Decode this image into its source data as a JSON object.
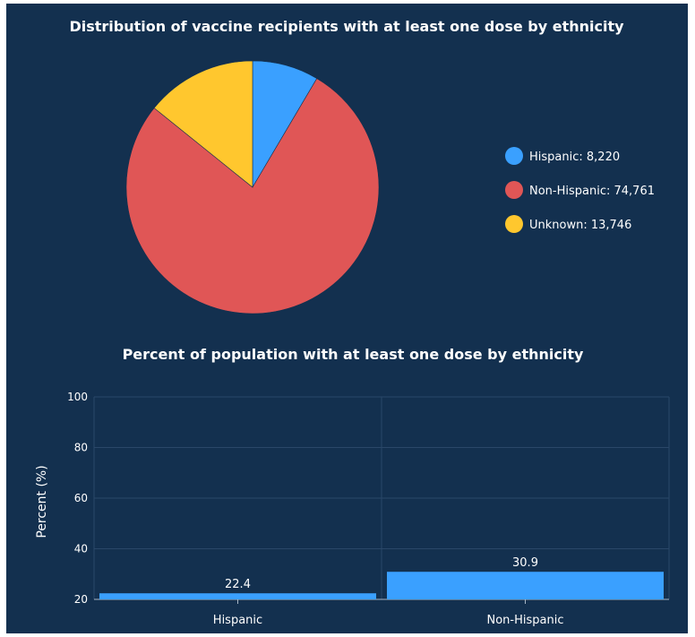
{
  "chart_data": [
    {
      "type": "pie",
      "title": "Distribution of vaccine recipients with at least one dose by ethnicity",
      "legend_position": "right",
      "slices": [
        {
          "label": "Hispanic",
          "value": 8220,
          "value_text": "8,220",
          "color": "#3aa0ff"
        },
        {
          "label": "Non-Hispanic",
          "value": 74761,
          "value_text": "74,761",
          "color": "#e05656"
        },
        {
          "label": "Unknown",
          "value": 13746,
          "value_text": "13,746",
          "color": "#ffc72e"
        }
      ]
    },
    {
      "type": "bar",
      "title": "Percent of population with at least one dose by ethnicity",
      "xlabel": "",
      "ylabel": "Percent (%)",
      "ylim": [
        20,
        100
      ],
      "yticks": [
        "20",
        "40",
        "60",
        "80",
        "100"
      ],
      "categories": [
        "Hispanic",
        "Non-Hispanic"
      ],
      "values": [
        22.4,
        30.9
      ],
      "value_labels": [
        "22.4",
        "30.9"
      ],
      "bar_color": "#3aa0ff",
      "grid": true
    }
  ]
}
